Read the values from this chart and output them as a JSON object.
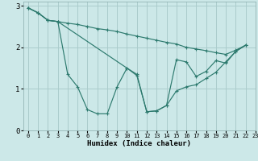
{
  "xlabel": "Humidex (Indice chaleur)",
  "ylabel": "",
  "bg_color": "#cce8e8",
  "grid_color": "#aacccc",
  "line_color": "#2d7a6e",
  "xlim": [
    -0.5,
    23
  ],
  "ylim": [
    0,
    3.1
  ],
  "yticks": [
    0,
    1,
    2,
    3
  ],
  "xticks": [
    0,
    1,
    2,
    3,
    4,
    5,
    6,
    7,
    8,
    9,
    10,
    11,
    12,
    13,
    14,
    15,
    16,
    17,
    18,
    19,
    20,
    21,
    22,
    23
  ],
  "line1_x": [
    0,
    1,
    2,
    3,
    4,
    5,
    6,
    7,
    8,
    9,
    10,
    11,
    12,
    13,
    14,
    15,
    16,
    17,
    18,
    19,
    20,
    21,
    22
  ],
  "line1_y": [
    2.95,
    2.83,
    2.65,
    2.62,
    2.58,
    2.55,
    2.5,
    2.45,
    2.42,
    2.38,
    2.32,
    2.27,
    2.22,
    2.17,
    2.12,
    2.08,
    2.0,
    1.96,
    1.92,
    1.87,
    1.83,
    1.93,
    2.05
  ],
  "line2_x": [
    0,
    1,
    2,
    3,
    4,
    5,
    6,
    7,
    8,
    9,
    10,
    11,
    12,
    13,
    14,
    15,
    16,
    17,
    18,
    19,
    20,
    21,
    22
  ],
  "line2_y": [
    2.95,
    2.83,
    2.65,
    2.62,
    1.35,
    1.05,
    0.5,
    0.4,
    0.4,
    1.05,
    1.5,
    1.35,
    0.45,
    0.47,
    0.6,
    0.95,
    1.05,
    1.1,
    1.25,
    1.4,
    1.65,
    1.9,
    2.05
  ],
  "line3_x": [
    0,
    1,
    2,
    3,
    10,
    11,
    12,
    13,
    14,
    15,
    16,
    17,
    18,
    19,
    20,
    21,
    22
  ],
  "line3_y": [
    2.95,
    2.83,
    2.65,
    2.62,
    1.5,
    1.32,
    0.45,
    0.47,
    0.6,
    1.7,
    1.65,
    1.3,
    1.42,
    1.68,
    1.62,
    1.9,
    2.05
  ]
}
